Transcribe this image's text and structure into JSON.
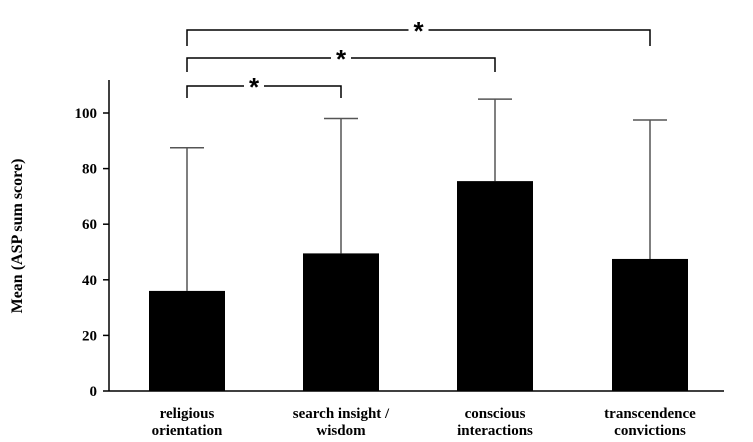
{
  "chart_data": {
    "type": "bar",
    "title": "",
    "xlabel": "",
    "ylabel": "Mean (ASP sum score)",
    "ylim": [
      0,
      110
    ],
    "yticks": [
      0,
      20,
      40,
      60,
      80,
      100
    ],
    "grid": false,
    "bar_color": "#000000",
    "categories": [
      [
        "religious",
        "orientation"
      ],
      [
        "search insight /",
        "wisdom"
      ],
      [
        "conscious",
        "interactions"
      ],
      [
        "transcendence",
        "convictions"
      ]
    ],
    "values": [
      36,
      49.5,
      75.5,
      47.5
    ],
    "error_upper": [
      87.5,
      98,
      105,
      97.5
    ],
    "significance": [
      {
        "from": 0,
        "to": 1,
        "label": "*"
      },
      {
        "from": 0,
        "to": 2,
        "label": "*"
      },
      {
        "from": 0,
        "to": 3,
        "label": "*"
      }
    ]
  }
}
